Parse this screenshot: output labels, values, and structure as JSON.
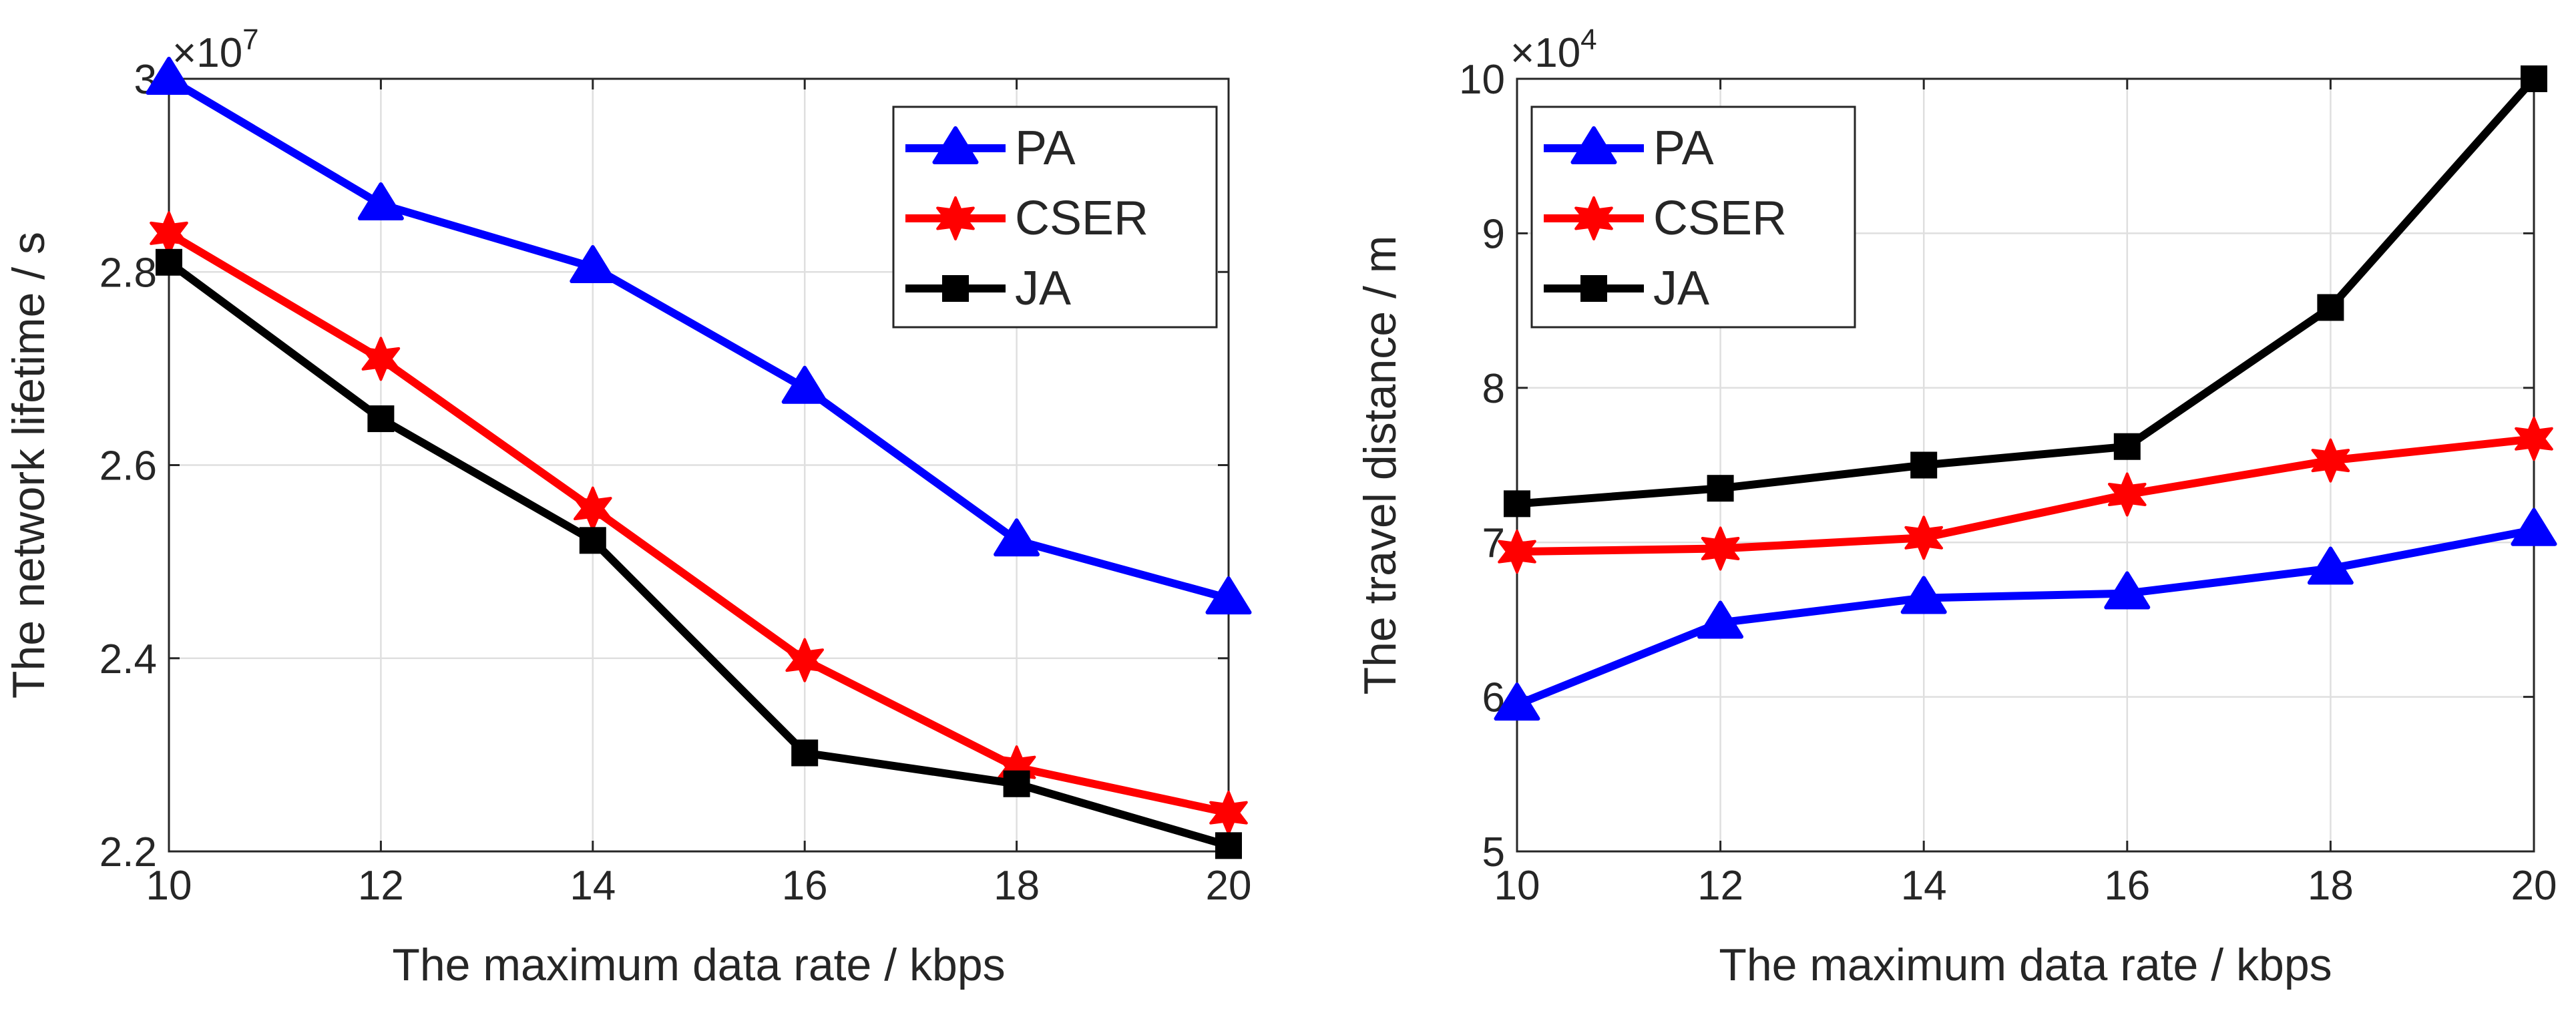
{
  "chart_data": [
    {
      "type": "line",
      "xlabel": "The maximum data rate / kbps",
      "ylabel": "The network lifetime / s",
      "exponent_label": "×10",
      "exponent_power": "7",
      "x": [
        10,
        12,
        14,
        16,
        18,
        20
      ],
      "xlim": [
        10,
        20
      ],
      "ylim": [
        2.2,
        3.0
      ],
      "xticks": [
        "10",
        "12",
        "14",
        "16",
        "18",
        "20"
      ],
      "yticks": [
        "2.2",
        "2.4",
        "2.6",
        "2.8",
        "3"
      ],
      "ytick_values": [
        2.2,
        2.4,
        2.6,
        2.8,
        3.0
      ],
      "grid": true,
      "legend_position": "top-right",
      "series": [
        {
          "name": "PA",
          "color": "#0000ff",
          "marker": "triangle",
          "values": [
            3.0,
            2.87,
            2.805,
            2.68,
            2.522,
            2.462
          ]
        },
        {
          "name": "CSER",
          "color": "#ff0000",
          "marker": "star",
          "values": [
            2.84,
            2.71,
            2.555,
            2.398,
            2.287,
            2.24
          ]
        },
        {
          "name": "JA",
          "color": "#000000",
          "marker": "square",
          "values": [
            2.81,
            2.648,
            2.522,
            2.302,
            2.27,
            2.206
          ]
        }
      ]
    },
    {
      "type": "line",
      "xlabel": "The maximum data rate / kbps",
      "ylabel": "The travel distance / m",
      "exponent_label": "×10",
      "exponent_power": "4",
      "x": [
        10,
        12,
        14,
        16,
        18,
        20
      ],
      "xlim": [
        10,
        20
      ],
      "ylim": [
        5,
        10
      ],
      "xticks": [
        "10",
        "12",
        "14",
        "16",
        "18",
        "20"
      ],
      "yticks": [
        "5",
        "6",
        "7",
        "8",
        "9",
        "10"
      ],
      "ytick_values": [
        5,
        6,
        7,
        8,
        9,
        10
      ],
      "grid": true,
      "legend_position": "top-left",
      "series": [
        {
          "name": "PA",
          "color": "#0000ff",
          "marker": "triangle",
          "values": [
            5.95,
            6.48,
            6.64,
            6.67,
            6.83,
            7.08
          ]
        },
        {
          "name": "CSER",
          "color": "#ff0000",
          "marker": "star",
          "values": [
            6.94,
            6.96,
            7.03,
            7.31,
            7.53,
            7.67
          ]
        },
        {
          "name": "JA",
          "color": "#000000",
          "marker": "square",
          "values": [
            7.25,
            7.35,
            7.5,
            7.62,
            8.52,
            10.0
          ]
        }
      ]
    }
  ]
}
